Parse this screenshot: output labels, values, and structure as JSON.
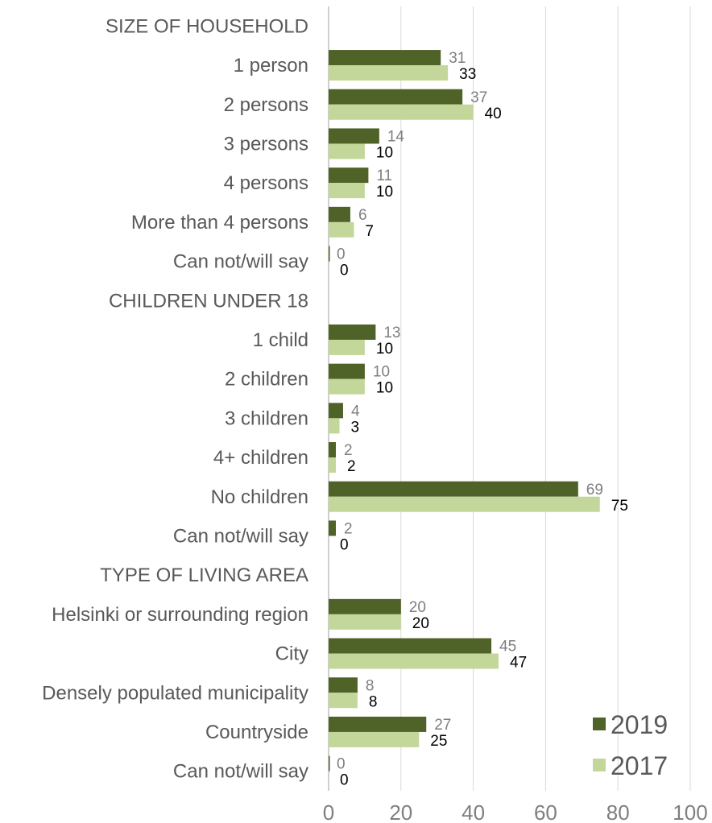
{
  "chart_data": {
    "type": "bar",
    "orientation": "horizontal",
    "categories": [
      "SIZE OF HOUSEHOLD",
      "1 person",
      "2 persons",
      "3 persons",
      "4 persons",
      "More than 4 persons",
      "Can not/will say",
      "CHILDREN UNDER 18",
      "1 child",
      "2 children",
      "3 children",
      "4+ children",
      "No children",
      "Can not/will say",
      "TYPE OF LIVING AREA",
      "Helsinki or surrounding region",
      "City",
      "Densely populated municipality",
      "Countryside",
      "Can not/will say"
    ],
    "series": [
      {
        "name": "2019",
        "color": "#4f6228",
        "values": [
          null,
          31,
          37,
          14,
          11,
          6,
          0,
          null,
          13,
          10,
          4,
          2,
          69,
          2,
          null,
          20,
          45,
          8,
          27,
          0
        ]
      },
      {
        "name": "2017",
        "color": "#c4d79b",
        "values": [
          null,
          33,
          40,
          10,
          10,
          7,
          0,
          null,
          10,
          10,
          3,
          2,
          75,
          0,
          null,
          20,
          47,
          8,
          25,
          0
        ]
      }
    ],
    "xlim": [
      0,
      100
    ],
    "xticks": [
      0,
      20,
      40,
      60,
      80,
      100
    ],
    "grid": true,
    "legend_position": "bottom-right"
  }
}
